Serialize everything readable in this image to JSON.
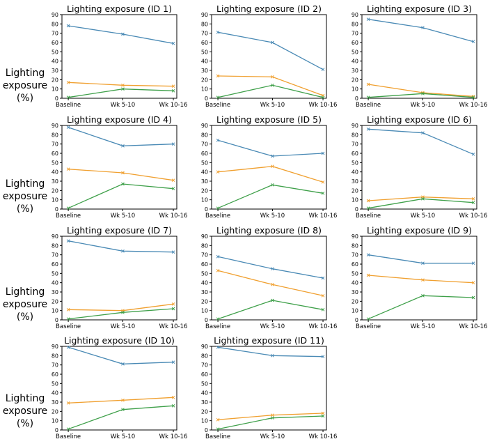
{
  "y_axis_label": "Lighting exposure (%)",
  "row_label_line1": "Lighting",
  "row_label_line2": "exposure (%)",
  "series_colors": {
    "blue": "#4a8ab5",
    "orange": "#f0a030",
    "green": "#3fa04a"
  },
  "chart_data": [
    {
      "type": "line",
      "title": "Lighting exposure (ID 1)",
      "categories": [
        "Baseline",
        "Wk 5-10",
        "Wk 10-16"
      ],
      "ylim": [
        0,
        90
      ],
      "yticks": [
        0,
        10,
        20,
        30,
        40,
        50,
        60,
        70,
        80,
        90
      ],
      "series": [
        {
          "name": "blue",
          "values": [
            78,
            69,
            59
          ]
        },
        {
          "name": "orange",
          "values": [
            17,
            14,
            13
          ]
        },
        {
          "name": "green",
          "values": [
            1,
            10,
            8
          ]
        }
      ]
    },
    {
      "type": "line",
      "title": "Lighting exposure (ID 2)",
      "categories": [
        "Baseline",
        "Wk 5-10",
        "Wk 10-16"
      ],
      "ylim": [
        0,
        90
      ],
      "yticks": [
        0,
        10,
        20,
        30,
        40,
        50,
        60,
        70,
        80,
        90
      ],
      "series": [
        {
          "name": "blue",
          "values": [
            71,
            60,
            31
          ]
        },
        {
          "name": "orange",
          "values": [
            24,
            23,
            3
          ]
        },
        {
          "name": "green",
          "values": [
            1,
            14,
            1
          ]
        }
      ]
    },
    {
      "type": "line",
      "title": "Lighting exposure (ID 3)",
      "categories": [
        "Baseline",
        "Wk 5-10",
        "Wk 10-16"
      ],
      "ylim": [
        0,
        90
      ],
      "yticks": [
        0,
        10,
        20,
        30,
        40,
        50,
        60,
        70,
        80,
        90
      ],
      "series": [
        {
          "name": "blue",
          "values": [
            85,
            76,
            61
          ]
        },
        {
          "name": "orange",
          "values": [
            15,
            6,
            2
          ]
        },
        {
          "name": "green",
          "values": [
            1,
            5,
            1
          ]
        }
      ]
    },
    {
      "type": "line",
      "title": "Lighting exposure (ID 4)",
      "categories": [
        "Baseline",
        "Wk 5-10",
        "Wk 10-16"
      ],
      "ylim": [
        0,
        90
      ],
      "yticks": [
        0,
        10,
        20,
        30,
        40,
        50,
        60,
        70,
        80,
        90
      ],
      "series": [
        {
          "name": "blue",
          "values": [
            88,
            68,
            70
          ]
        },
        {
          "name": "orange",
          "values": [
            43,
            39,
            31
          ]
        },
        {
          "name": "green",
          "values": [
            1,
            27,
            22
          ]
        }
      ]
    },
    {
      "type": "line",
      "title": "Lighting exposure (ID 5)",
      "categories": [
        "Baseline",
        "Wk 5-10",
        "Wk 10-16"
      ],
      "ylim": [
        0,
        90
      ],
      "yticks": [
        0,
        10,
        20,
        30,
        40,
        50,
        60,
        70,
        80,
        90
      ],
      "series": [
        {
          "name": "blue",
          "values": [
            74,
            57,
            60
          ]
        },
        {
          "name": "orange",
          "values": [
            40,
            46,
            29
          ]
        },
        {
          "name": "green",
          "values": [
            1,
            26,
            17
          ]
        }
      ]
    },
    {
      "type": "line",
      "title": "Lighting exposure (ID 6)",
      "categories": [
        "Baseline",
        "Wk 5-10",
        "Wk 10-16"
      ],
      "ylim": [
        0,
        90
      ],
      "yticks": [
        0,
        10,
        20,
        30,
        40,
        50,
        60,
        70,
        80,
        90
      ],
      "series": [
        {
          "name": "blue",
          "values": [
            86,
            82,
            59
          ]
        },
        {
          "name": "orange",
          "values": [
            9,
            13,
            11
          ]
        },
        {
          "name": "green",
          "values": [
            1,
            11,
            7
          ]
        }
      ]
    },
    {
      "type": "line",
      "title": "Lighting exposure (ID 7)",
      "categories": [
        "Baseline",
        "Wk 5-10",
        "Wk 10-16"
      ],
      "ylim": [
        0,
        90
      ],
      "yticks": [
        0,
        10,
        20,
        30,
        40,
        50,
        60,
        70,
        80,
        90
      ],
      "series": [
        {
          "name": "blue",
          "values": [
            85,
            74,
            73
          ]
        },
        {
          "name": "orange",
          "values": [
            11,
            10,
            17
          ]
        },
        {
          "name": "green",
          "values": [
            1,
            8,
            12
          ]
        }
      ]
    },
    {
      "type": "line",
      "title": "Lighting exposure (ID 8)",
      "categories": [
        "Baseline",
        "Wk 5-10",
        "Wk 10-16"
      ],
      "ylim": [
        0,
        90
      ],
      "yticks": [
        0,
        10,
        20,
        30,
        40,
        50,
        60,
        70,
        80,
        90
      ],
      "series": [
        {
          "name": "blue",
          "values": [
            68,
            55,
            45
          ]
        },
        {
          "name": "orange",
          "values": [
            53,
            38,
            26
          ]
        },
        {
          "name": "green",
          "values": [
            1,
            21,
            11
          ]
        }
      ]
    },
    {
      "type": "line",
      "title": "Lighting exposure (ID 9)",
      "categories": [
        "Baseline",
        "Wk 5-10",
        "Wk 10-16"
      ],
      "ylim": [
        0,
        90
      ],
      "yticks": [
        0,
        10,
        20,
        30,
        40,
        50,
        60,
        70,
        80,
        90
      ],
      "series": [
        {
          "name": "blue",
          "values": [
            70,
            61,
            61
          ]
        },
        {
          "name": "orange",
          "values": [
            48,
            43,
            40
          ]
        },
        {
          "name": "green",
          "values": [
            1,
            26,
            24
          ]
        }
      ]
    },
    {
      "type": "line",
      "title": "Lighting exposure (ID 10)",
      "categories": [
        "Baseline",
        "Wk 5-10",
        "Wk 10-16"
      ],
      "ylim": [
        0,
        90
      ],
      "yticks": [
        0,
        10,
        20,
        30,
        40,
        50,
        60,
        70,
        80,
        90
      ],
      "series": [
        {
          "name": "blue",
          "values": [
            89,
            71,
            73
          ]
        },
        {
          "name": "orange",
          "values": [
            29,
            32,
            35
          ]
        },
        {
          "name": "green",
          "values": [
            1,
            22,
            26
          ]
        }
      ]
    },
    {
      "type": "line",
      "title": "Lighting exposure (ID 11)",
      "categories": [
        "Baseline",
        "Wk 5-10",
        "Wk 10-16"
      ],
      "ylim": [
        0,
        90
      ],
      "yticks": [
        0,
        10,
        20,
        30,
        40,
        50,
        60,
        70,
        80,
        90
      ],
      "series": [
        {
          "name": "blue",
          "values": [
            89,
            80,
            79
          ]
        },
        {
          "name": "orange",
          "values": [
            11,
            16,
            18
          ]
        },
        {
          "name": "green",
          "values": [
            1,
            13,
            15
          ]
        }
      ]
    }
  ]
}
